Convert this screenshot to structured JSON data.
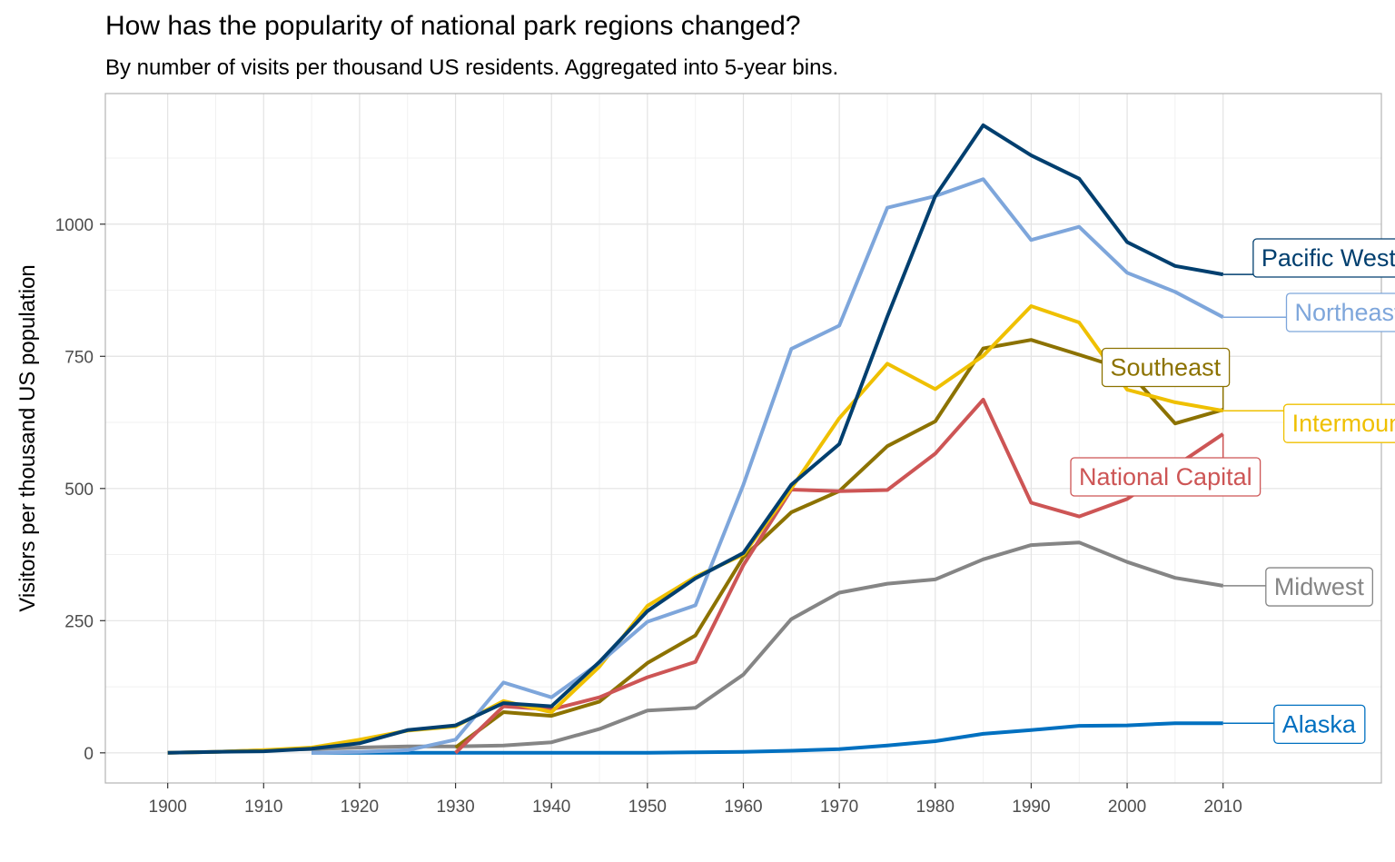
{
  "chart_data": {
    "type": "line",
    "title": "How has the popularity of national park regions changed?",
    "subtitle": "By number of visits per thousand US residents. Aggregated into 5-year bins.",
    "xlabel": "",
    "ylabel": "Visitors per thousand US population",
    "xlim": [
      1893.5,
      2026.5
    ],
    "ylim": [
      -57,
      1247
    ],
    "xticks": [
      1900,
      1910,
      1920,
      1930,
      1940,
      1950,
      1960,
      1970,
      1980,
      1990,
      2000,
      2010
    ],
    "yticks": [
      0,
      250,
      500,
      750,
      1000
    ],
    "grid": true,
    "legend": "direct labels at line ends",
    "series": [
      {
        "name": "Midwest",
        "color": "#858585",
        "label_pos": [
          2020,
          314
        ],
        "x": [
          1900,
          1905,
          1910,
          1915,
          1920,
          1925,
          1930,
          1935,
          1940,
          1945,
          1950,
          1955,
          1960,
          1965,
          1970,
          1975,
          1980,
          1985,
          1990,
          1995,
          2000,
          2005,
          2010
        ],
        "y": [
          0,
          2,
          5,
          7,
          10,
          12,
          12,
          14,
          20,
          45,
          80,
          85,
          148,
          253,
          303,
          320,
          328,
          366,
          393,
          398,
          361,
          331,
          316
        ]
      },
      {
        "name": "Alaska",
        "color": "#0070C0",
        "label_pos": [
          2020,
          54
        ],
        "x": [
          1915,
          1920,
          1925,
          1930,
          1935,
          1940,
          1945,
          1950,
          1955,
          1960,
          1965,
          1970,
          1975,
          1980,
          1985,
          1990,
          1995,
          2000,
          2005,
          2010
        ],
        "y": [
          0,
          0,
          0,
          0,
          0,
          0,
          0,
          0,
          1,
          2,
          4,
          7,
          14,
          22,
          36,
          43,
          51,
          52,
          56,
          56
        ]
      },
      {
        "name": "Southeast",
        "color": "#8C7200",
        "label_pos": [
          2004,
          729
        ],
        "x": [
          1930,
          1935,
          1940,
          1945,
          1950,
          1955,
          1960,
          1965,
          1970,
          1975,
          1980,
          1985,
          1990,
          1995,
          2000,
          2005,
          2010
        ],
        "y": [
          10,
          77,
          70,
          97,
          170,
          222,
          370,
          455,
          495,
          580,
          627,
          765,
          781,
          753,
          724,
          623,
          649
        ]
      },
      {
        "name": "National Capital",
        "color": "#CD5555",
        "label_pos": [
          2004,
          522
        ],
        "x": [
          1930,
          1935,
          1940,
          1945,
          1950,
          1955,
          1960,
          1965,
          1970,
          1975,
          1980,
          1985,
          1990,
          1995,
          2000,
          2005,
          2010
        ],
        "y": [
          0,
          88,
          82,
          105,
          143,
          172,
          355,
          498,
          495,
          497,
          566,
          668,
          473,
          447,
          480,
          542,
          603
        ]
      },
      {
        "name": "Intermountain",
        "color": "#EFC000",
        "label_pos": [
          2025,
          623
        ],
        "x": [
          1900,
          1905,
          1910,
          1915,
          1920,
          1925,
          1930,
          1935,
          1940,
          1945,
          1950,
          1955,
          1960,
          1965,
          1970,
          1975,
          1980,
          1985,
          1990,
          1995,
          2000,
          2005,
          2010
        ],
        "y": [
          0,
          2,
          5,
          10,
          25,
          42,
          50,
          98,
          77,
          163,
          278,
          333,
          375,
          500,
          633,
          736,
          688,
          751,
          845,
          814,
          687,
          663,
          647
        ]
      },
      {
        "name": "Northeast",
        "color": "#7EA6DB",
        "label_pos": [
          2023,
          833
        ],
        "x": [
          1915,
          1920,
          1925,
          1930,
          1935,
          1940,
          1945,
          1950,
          1955,
          1960,
          1965,
          1970,
          1975,
          1980,
          1985,
          1990,
          1995,
          2000,
          2005,
          2010
        ],
        "y": [
          0,
          2,
          5,
          25,
          133,
          105,
          170,
          248,
          279,
          507,
          764,
          808,
          1031,
          1053,
          1085,
          970,
          995,
          908,
          872,
          824
        ]
      },
      {
        "name": "Pacific West",
        "color": "#003F6F",
        "label_pos": [
          2021,
          936
        ],
        "x": [
          1900,
          1905,
          1910,
          1915,
          1920,
          1925,
          1930,
          1935,
          1940,
          1945,
          1950,
          1955,
          1960,
          1965,
          1970,
          1975,
          1980,
          1985,
          1990,
          1995,
          2000,
          2005,
          2010
        ],
        "y": [
          0,
          2,
          3,
          8,
          18,
          43,
          52,
          94,
          88,
          172,
          268,
          330,
          378,
          507,
          584,
          825,
          1053,
          1187,
          1130,
          1086,
          966,
          921,
          905
        ]
      }
    ]
  }
}
